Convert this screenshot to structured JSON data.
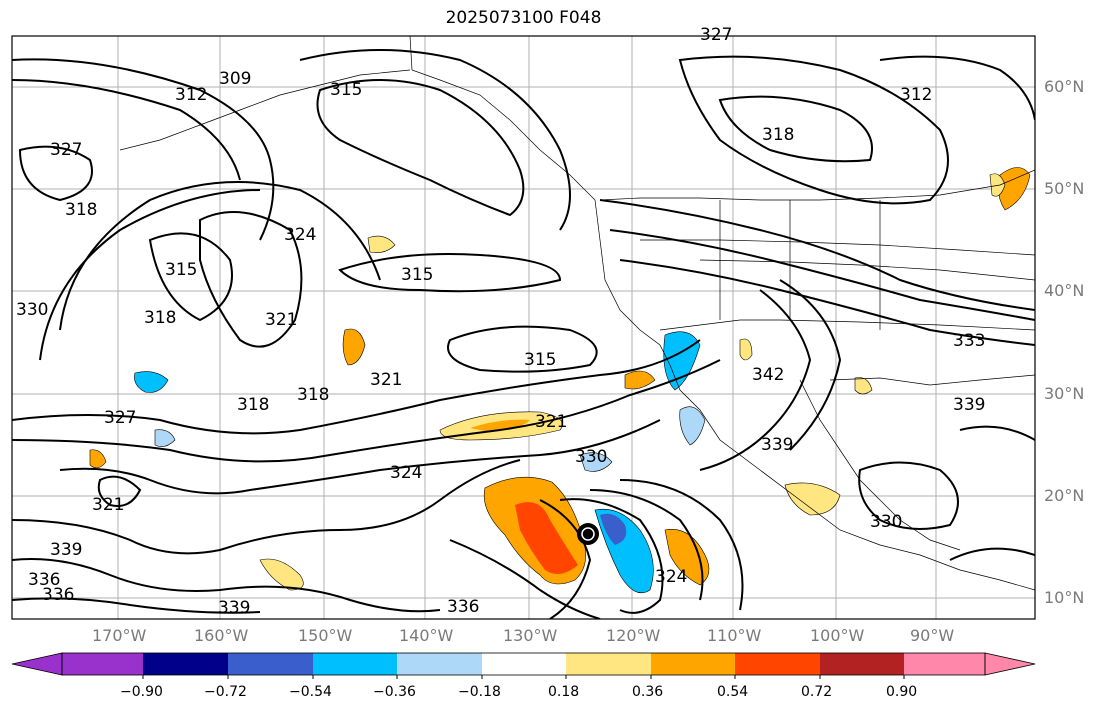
{
  "title": "2025073100 F048",
  "latitude_labels": [
    "60°N",
    "50°N",
    "40°N",
    "30°N",
    "20°N",
    "10°N"
  ],
  "longitude_labels": [
    "170°W",
    "160°W",
    "150°W",
    "140°W",
    "130°W",
    "120°W",
    "110°W",
    "100°W",
    "90°W"
  ],
  "colorbar": {
    "tick_labels": [
      "−0.90",
      "−0.72",
      "−0.54",
      "−0.36",
      "−0.18",
      "0.18",
      "0.36",
      "0.54",
      "0.72",
      "0.90"
    ],
    "colors": [
      "#9932cc",
      "#00008b",
      "#3a5fcd",
      "#00bfff",
      "#add8f7",
      "#ffffff",
      "#ffe680",
      "#ffa500",
      "#ff4500",
      "#b22222",
      "#ff88aa"
    ]
  },
  "contour_labels": [
    {
      "text": "309"
    },
    {
      "text": "312"
    },
    {
      "text": "315"
    },
    {
      "text": "318"
    },
    {
      "text": "318"
    },
    {
      "text": "318"
    },
    {
      "text": "318"
    },
    {
      "text": "315"
    },
    {
      "text": "315"
    },
    {
      "text": "315"
    },
    {
      "text": "321"
    },
    {
      "text": "321"
    },
    {
      "text": "321"
    },
    {
      "text": "324"
    },
    {
      "text": "324"
    },
    {
      "text": "327"
    },
    {
      "text": "327"
    },
    {
      "text": "330"
    },
    {
      "text": "330"
    },
    {
      "text": "330"
    },
    {
      "text": "333"
    },
    {
      "text": "336"
    },
    {
      "text": "336"
    },
    {
      "text": "336"
    },
    {
      "text": "339"
    },
    {
      "text": "339"
    },
    {
      "text": "339"
    },
    {
      "text": "339"
    },
    {
      "text": "342"
    },
    {
      "text": "324"
    },
    {
      "text": "321"
    },
    {
      "text": "327"
    },
    {
      "text": "312"
    },
    {
      "text": "318"
    }
  ],
  "marker": {
    "name": "storm-center",
    "color": "#000000"
  }
}
